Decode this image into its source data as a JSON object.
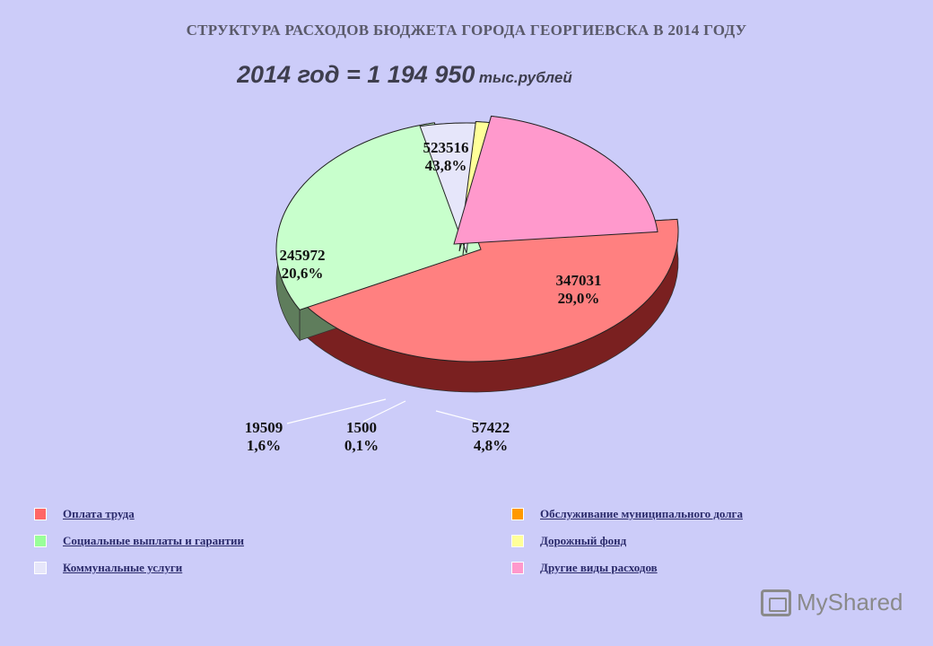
{
  "header": {
    "title": "СТРУКТУРА РАСХОДОВ БЮДЖЕТА ГОРОДА ГЕОРГИЕВСКА В 2014 ГОДУ",
    "total_main": "2014 год = 1 194 950",
    "total_unit": "тыс.рублей"
  },
  "chart_data": {
    "type": "pie",
    "title": "СТРУКТУРА РАСХОДОВ БЮДЖЕТА ГОРОДА ГЕОРГИЕВСКА В 2014 ГОДУ",
    "total": 1194950,
    "slices": [
      {
        "name": "Оплата труда",
        "value": 523516,
        "pct": "43,8%",
        "color": "#ff8080",
        "side": "#7a2020"
      },
      {
        "name": "Социальные выплаты и гарантии",
        "value": 347031,
        "pct": "29,0%",
        "color": "#c8ffcc",
        "side": "#5f7d5c"
      },
      {
        "name": "Коммунальные услуги",
        "value": 57422,
        "pct": "4,8%",
        "color": "#e6e6fa",
        "side": "#8a8aa8"
      },
      {
        "name": "Обслуживание муниципального долга",
        "value": 1500,
        "pct": "0,1%",
        "color": "#ff9900",
        "side": "#a05a00"
      },
      {
        "name": "Дорожный фонд",
        "value": 19509,
        "pct": "1,6%",
        "color": "#ffff99",
        "side": "#a8a860"
      },
      {
        "name": "Другие виды расходов",
        "value": 245972,
        "pct": "20,6%",
        "color": "#ff99cc",
        "side": "#b05a86"
      }
    ],
    "legend_position": "bottom"
  },
  "legend": {
    "left": [
      {
        "label": "Оплата труда",
        "color": "#ff6666"
      },
      {
        "label": "Социальные выплаты и гарантии",
        "color": "#99ff99"
      },
      {
        "label": "Коммунальные услуги",
        "color": "#e6e6fa"
      }
    ],
    "right": [
      {
        "label": "Обслуживание муниципального долга",
        "color": "#ff9900"
      },
      {
        "label": "Дорожный фонд",
        "color": "#ffff99"
      },
      {
        "label": "Другие виды расходов",
        "color": "#ff99cc"
      }
    ]
  },
  "watermark": {
    "text": "MyShared"
  }
}
